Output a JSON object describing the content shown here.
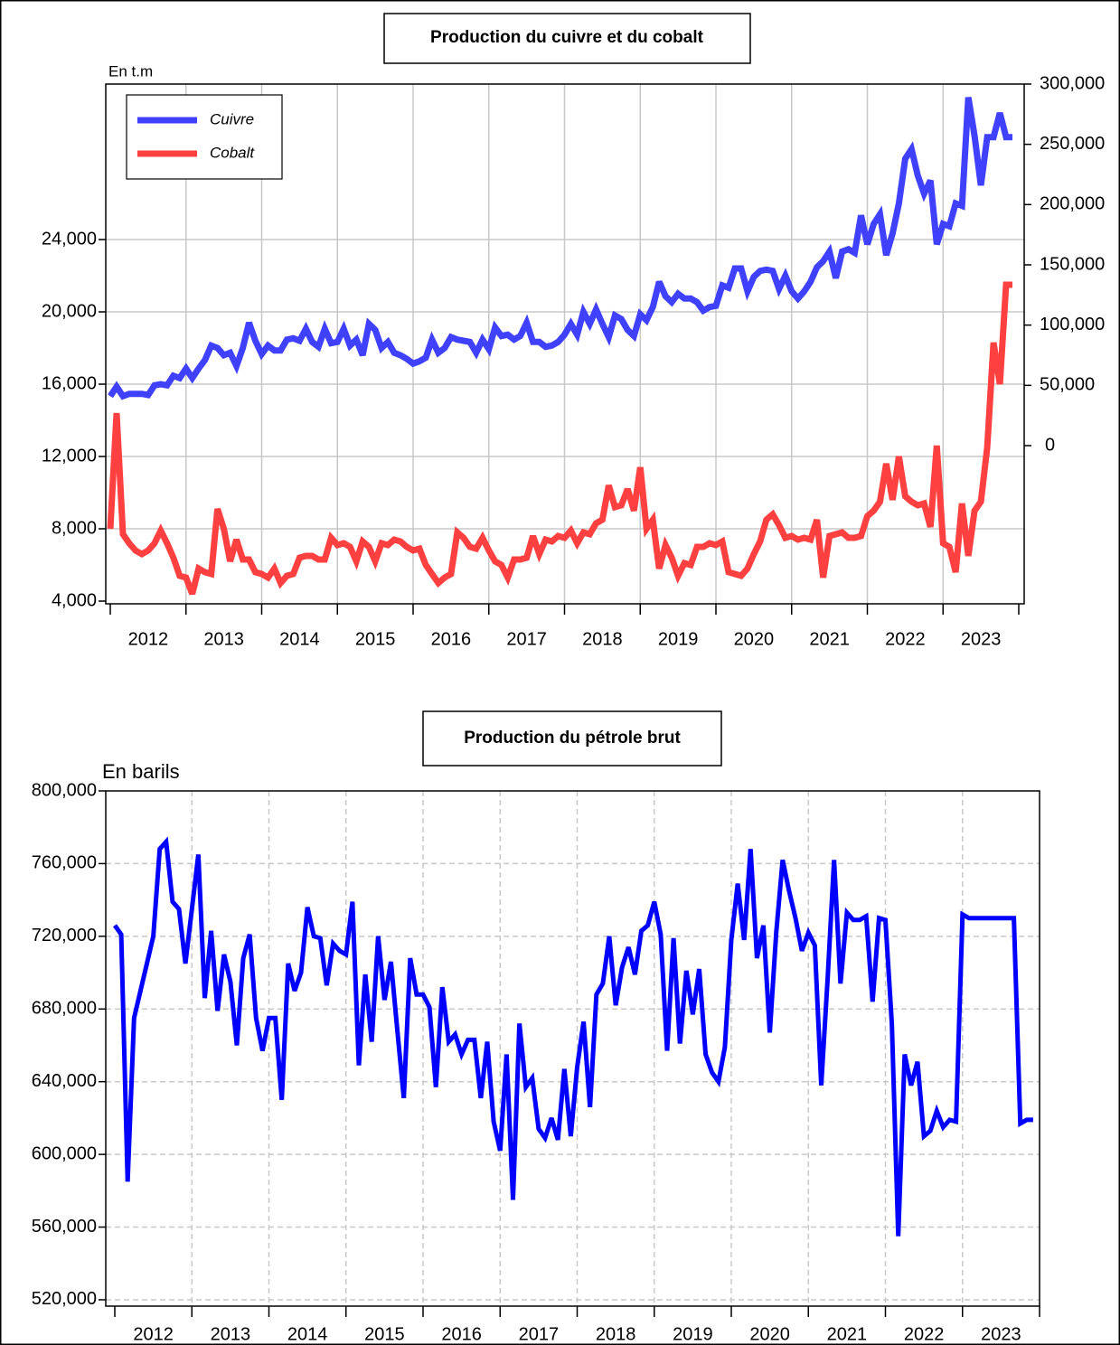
{
  "chart_data": [
    {
      "type": "line",
      "title": "Production du cuivre et du cobalt",
      "y_label": "En t.m",
      "categories": [
        null,
        null,
        null,
        null,
        null,
        null,
        "2012",
        null,
        null,
        null,
        null,
        null,
        null,
        null,
        null,
        null,
        null,
        null,
        "2013",
        null,
        null,
        null,
        null,
        null,
        null,
        null,
        null,
        null,
        null,
        null,
        "2014",
        null,
        null,
        null,
        null,
        null,
        null,
        null,
        null,
        null,
        null,
        null,
        "2015",
        null,
        null,
        null,
        null,
        null,
        null,
        null,
        null,
        null,
        null,
        null,
        "2016",
        null,
        null,
        null,
        null,
        null,
        null,
        null,
        null,
        null,
        null,
        null,
        "2017",
        null,
        null,
        null,
        null,
        null,
        null,
        null,
        null,
        null,
        null,
        null,
        "2018",
        null,
        null,
        null,
        null,
        null,
        null,
        null,
        null,
        null,
        null,
        null,
        "2019",
        null,
        null,
        null,
        null,
        null,
        null,
        null,
        null,
        null,
        null,
        null,
        "2020",
        null,
        null,
        null,
        null,
        null,
        null,
        null,
        null,
        null,
        null,
        null,
        "2021",
        null,
        null,
        null,
        null,
        null,
        null,
        null,
        null,
        null,
        null,
        null,
        "2022",
        null,
        null,
        null,
        null,
        null,
        null,
        null,
        null,
        null,
        null,
        null,
        "2023",
        null,
        null,
        null,
        null,
        null
      ],
      "series": [
        {
          "name": "Cuivre",
          "color": "#4040ff",
          "axis": "y2",
          "values": [
            41000,
            49000,
            41000,
            43000,
            43000,
            43000,
            42000,
            50000,
            51000,
            50000,
            58000,
            56000,
            64000,
            56000,
            64000,
            71000,
            83000,
            81000,
            75000,
            77000,
            66000,
            81000,
            102000,
            87000,
            76000,
            83000,
            79000,
            79000,
            88000,
            89000,
            87000,
            97000,
            86000,
            82000,
            97000,
            85000,
            86000,
            97000,
            83000,
            88000,
            75000,
            101000,
            96000,
            81000,
            86000,
            77000,
            75000,
            72000,
            68000,
            70000,
            73000,
            88000,
            77000,
            81000,
            90000,
            88000,
            87000,
            86000,
            77000,
            88000,
            80000,
            98000,
            91000,
            92000,
            88000,
            91000,
            102000,
            86000,
            86000,
            82000,
            83000,
            86000,
            92000,
            101000,
            92000,
            111000,
            101000,
            113000,
            101000,
            90000,
            108000,
            105000,
            96000,
            91000,
            109000,
            104000,
            115000,
            136000,
            124000,
            119000,
            126000,
            122000,
            122000,
            119000,
            112000,
            115000,
            116000,
            133000,
            131000,
            147000,
            147000,
            128000,
            140000,
            145000,
            146000,
            145000,
            130000,
            141000,
            128000,
            122000,
            128000,
            136000,
            148000,
            153000,
            161000,
            139000,
            161000,
            163000,
            160000,
            191000,
            167000,
            184000,
            192000,
            158000,
            176000,
            201000,
            238000,
            246000,
            224000,
            209000,
            220000,
            167000,
            184000,
            182000,
            201000,
            199000,
            289000,
            257000,
            216000,
            256000,
            256000,
            276000,
            256000,
            256000
          ]
        },
        {
          "name": "Cobalt",
          "color": "#ff4040",
          "values": [
            8000,
            14400,
            7700,
            7200,
            6800,
            6600,
            6800,
            7200,
            7900,
            7200,
            6400,
            5400,
            5300,
            4400,
            5800,
            5600,
            5500,
            9100,
            8000,
            6200,
            7400,
            6300,
            6300,
            5600,
            5500,
            5300,
            5800,
            5000,
            5400,
            5500,
            6400,
            6500,
            6500,
            6300,
            6300,
            7500,
            7100,
            7200,
            7000,
            6200,
            7300,
            7000,
            6200,
            7200,
            7100,
            7400,
            7300,
            7000,
            6800,
            6900,
            6000,
            5500,
            5000,
            5300,
            5500,
            7800,
            7500,
            7000,
            6900,
            7500,
            6800,
            6200,
            6000,
            5300,
            6300,
            6300,
            6400,
            7600,
            6600,
            7400,
            7300,
            7600,
            7500,
            7900,
            7200,
            7800,
            7700,
            8300,
            8500,
            10400,
            9200,
            9300,
            10200,
            9000,
            11400,
            8000,
            8500,
            5800,
            7100,
            6400,
            5400,
            6100,
            6000,
            7000,
            7000,
            7200,
            7100,
            7300,
            5600,
            5500,
            5400,
            5800,
            6600,
            7300,
            8500,
            8800,
            8200,
            7500,
            7600,
            7400,
            7500,
            7400,
            8500,
            5300,
            7600,
            7700,
            7800,
            7500,
            7500,
            7600,
            8700,
            9000,
            9500,
            11600,
            9600,
            12000,
            9800,
            9500,
            9300,
            9400,
            8100,
            12600,
            7200,
            7000,
            5600,
            9400,
            6500,
            9000,
            9500,
            12500,
            18300,
            16000,
            21500,
            21500
          ]
        }
      ],
      "ylim": [
        3850,
        32600
      ],
      "yticks": [
        {
          "value": 4000,
          "label": "4,000"
        },
        {
          "value": 8000,
          "label": "8,000"
        },
        {
          "value": 12000,
          "label": "12,000"
        },
        {
          "value": 16000,
          "label": "16,000"
        },
        {
          "value": 20000,
          "label": "20,000"
        },
        {
          "value": 24000,
          "label": "24,000"
        }
      ],
      "y2lim": [
        -131250,
        300000
      ],
      "y2ticks": [
        0,
        {
          "value": 50000,
          "label": "50,000"
        },
        {
          "value": 100000,
          "label": "100,000"
        },
        {
          "value": 150000,
          "label": "150,000"
        },
        {
          "value": 200000,
          "label": "200,000"
        },
        {
          "value": 250000,
          "label": "250,000"
        },
        {
          "value": 300000,
          "label": "300,000"
        }
      ],
      "grid": "solid",
      "legend": "top-left"
    },
    {
      "type": "line",
      "title": "Production du pétrole brut",
      "y_label": "En barils",
      "categories": [
        null,
        null,
        null,
        null,
        null,
        null,
        "2012",
        null,
        null,
        null,
        null,
        null,
        null,
        null,
        null,
        null,
        null,
        null,
        "2013",
        null,
        null,
        null,
        null,
        null,
        null,
        null,
        null,
        null,
        null,
        null,
        "2014",
        null,
        null,
        null,
        null,
        null,
        null,
        null,
        null,
        null,
        null,
        null,
        "2015",
        null,
        null,
        null,
        null,
        null,
        null,
        null,
        null,
        null,
        null,
        null,
        "2016",
        null,
        null,
        null,
        null,
        null,
        null,
        null,
        null,
        null,
        null,
        null,
        "2017",
        null,
        null,
        null,
        null,
        null,
        null,
        null,
        null,
        null,
        null,
        null,
        "2018",
        null,
        null,
        null,
        null,
        null,
        null,
        null,
        null,
        null,
        null,
        null,
        "2019",
        null,
        null,
        null,
        null,
        null,
        null,
        null,
        null,
        null,
        null,
        null,
        "2020",
        null,
        null,
        null,
        null,
        null,
        null,
        null,
        null,
        null,
        null,
        null,
        "2021",
        null,
        null,
        null,
        null,
        null,
        null,
        null,
        null,
        null,
        null,
        null,
        "2022",
        null,
        null,
        null,
        null,
        null,
        null,
        null,
        null,
        null,
        null,
        null,
        "2023",
        null,
        null,
        null,
        null,
        null
      ],
      "series": [
        {
          "color": "#0000ff",
          "values": [
            726000,
            721000,
            585000,
            675000,
            690000,
            705000,
            720000,
            768000,
            772000,
            739000,
            735000,
            705000,
            735000,
            765000,
            686000,
            723000,
            679000,
            710000,
            695000,
            660000,
            708000,
            721000,
            675000,
            657000,
            675000,
            675000,
            630000,
            705000,
            690000,
            700000,
            736000,
            720000,
            719000,
            693000,
            716000,
            712000,
            710000,
            739000,
            649000,
            699000,
            662000,
            720000,
            685000,
            706000,
            668000,
            631000,
            708000,
            688000,
            688000,
            681000,
            637000,
            692000,
            662000,
            666000,
            655000,
            663000,
            663000,
            631000,
            662000,
            618000,
            602000,
            655000,
            575000,
            672000,
            637000,
            642000,
            614000,
            609000,
            620000,
            608000,
            647000,
            610000,
            648000,
            673000,
            626000,
            688000,
            694000,
            720000,
            682000,
            703000,
            714000,
            699000,
            723000,
            726000,
            739000,
            721000,
            657000,
            719000,
            661000,
            701000,
            677000,
            702000,
            655000,
            645000,
            640000,
            659000,
            718000,
            749000,
            718000,
            768000,
            708000,
            726000,
            667000,
            722000,
            762000,
            745000,
            730000,
            712000,
            722000,
            715000,
            638000,
            697000,
            762000,
            694000,
            733000,
            729000,
            729000,
            731000,
            684000,
            730000,
            729000,
            672000,
            555000,
            655000,
            638000,
            651000,
            610000,
            613000,
            624000,
            615000,
            619000,
            618000,
            732000,
            730000,
            730000,
            730000,
            730000,
            730000,
            730000,
            730000,
            730000,
            617000,
            619000,
            619000
          ]
        }
      ],
      "ylim": [
        516500,
        800000
      ],
      "yticks": [
        {
          "value": 520000,
          "label": "520,000"
        },
        {
          "value": 560000,
          "label": "560,000"
        },
        {
          "value": 600000,
          "label": "600,000"
        },
        {
          "value": 640000,
          "label": "640,000"
        },
        {
          "value": 680000,
          "label": "680,000"
        },
        {
          "value": 720000,
          "label": "720,000"
        },
        {
          "value": 760000,
          "label": "760,000"
        },
        {
          "value": 800000,
          "label": "800,000"
        }
      ],
      "grid": "dashed"
    }
  ]
}
